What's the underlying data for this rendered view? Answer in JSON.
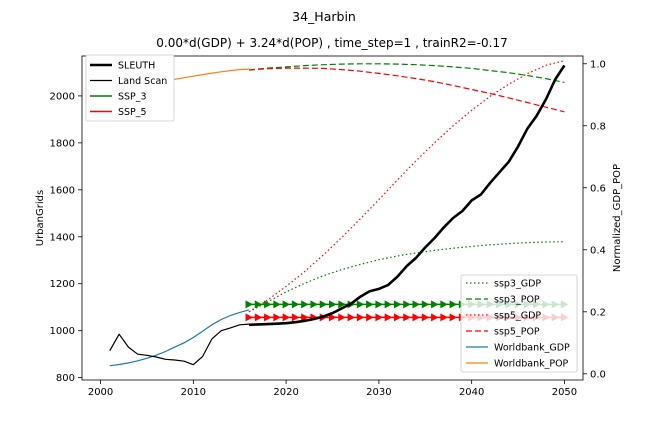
{
  "figure": {
    "suptitle": "34_Harbin",
    "title": "0.00*d(GDP) + 3.24*d(POP) , time_step=1 , trainR2=-0.17"
  },
  "chart_data": {
    "type": "line",
    "title": "0.00*d(GDP) + 3.24*d(POP) , time_step=1 , trainR2=-0.17",
    "xlim": [
      1998,
      2052
    ],
    "xticks": [
      2000,
      2010,
      2020,
      2030,
      2040,
      2050
    ],
    "left_axis": {
      "label": "UrbanGrids",
      "ylim": [
        790,
        2170
      ],
      "ticks": [
        800,
        1000,
        1200,
        1400,
        1600,
        1800,
        2000
      ]
    },
    "right_axis": {
      "label": "Normalized_GDP_POP",
      "ylim": [
        -0.02,
        1.025
      ],
      "ticks": [
        "0.0",
        "0.2",
        "0.4",
        "0.6",
        "0.8",
        "1.0"
      ]
    },
    "legend_left": {
      "placement": "upper-left",
      "entries": [
        "SLEUTH",
        "Land Scan",
        "SSP_3",
        "SSP_5"
      ]
    },
    "legend_right": {
      "placement": "lower-right",
      "entries": [
        "ssp3_GDP",
        "ssp3_POP",
        "ssp5_GDP",
        "ssp5_POP",
        "Worldbank_GDP",
        "Worldbank_POP"
      ]
    },
    "series_left": [
      {
        "name": "SLEUTH",
        "color": "#000000",
        "width": 2.6,
        "style": "solid",
        "x": [
          2016,
          2017,
          2018,
          2019,
          2020,
          2021,
          2022,
          2023,
          2024,
          2025,
          2026,
          2027,
          2028,
          2029,
          2030,
          2031,
          2032,
          2033,
          2034,
          2035,
          2036,
          2037,
          2038,
          2039,
          2040,
          2041,
          2042,
          2043,
          2044,
          2045,
          2046,
          2047,
          2048,
          2049,
          2050
        ],
        "y": [
          1025,
          1027,
          1028,
          1030,
          1032,
          1036,
          1042,
          1050,
          1060,
          1075,
          1095,
          1115,
          1145,
          1168,
          1178,
          1195,
          1230,
          1275,
          1310,
          1355,
          1395,
          1440,
          1480,
          1510,
          1555,
          1580,
          1630,
          1675,
          1720,
          1785,
          1860,
          1915,
          1985,
          2070,
          2130
        ]
      },
      {
        "name": "Land Scan",
        "color": "#000000",
        "width": 1.2,
        "style": "solid",
        "x": [
          2001,
          2002,
          2003,
          2004,
          2005,
          2006,
          2007,
          2008,
          2009,
          2010,
          2011,
          2012,
          2013,
          2014,
          2015,
          2016
        ],
        "y": [
          915,
          985,
          930,
          900,
          895,
          888,
          878,
          875,
          870,
          855,
          890,
          965,
          1000,
          1012,
          1025,
          1028
        ]
      },
      {
        "name": "SSP_3",
        "color": "#008000",
        "width": 1.5,
        "style": "solid",
        "x": [],
        "y": []
      },
      {
        "name": "SSP_5",
        "color": "#ff0000",
        "width": 1.5,
        "style": "solid",
        "x": [],
        "y": []
      }
    ],
    "series_right": [
      {
        "name": "ssp3_GDP",
        "color": "#008000",
        "style": "dotted",
        "x": [
          2016,
          2018,
          2020,
          2022,
          2024,
          2026,
          2028,
          2030,
          2032,
          2034,
          2036,
          2038,
          2040,
          2042,
          2044,
          2046,
          2048,
          2050
        ],
        "y": [
          0.2,
          0.232,
          0.264,
          0.292,
          0.316,
          0.336,
          0.353,
          0.368,
          0.38,
          0.39,
          0.398,
          0.405,
          0.411,
          0.416,
          0.42,
          0.423,
          0.425,
          0.426
        ]
      },
      {
        "name": "ssp3_POP",
        "color": "#008000",
        "style": "dashed",
        "x": [
          2016,
          2018,
          2020,
          2022,
          2024,
          2026,
          2028,
          2030,
          2032,
          2034,
          2036,
          2038,
          2040,
          2042,
          2044,
          2046,
          2048,
          2050
        ],
        "y": [
          0.98,
          0.986,
          0.99,
          0.994,
          0.997,
          0.999,
          1.0,
          1.0,
          0.999,
          0.997,
          0.994,
          0.99,
          0.985,
          0.978,
          0.971,
          0.962,
          0.952,
          0.94
        ]
      },
      {
        "name": "ssp5_GDP",
        "color": "#ff0000",
        "style": "dotted",
        "x": [
          2016,
          2018,
          2020,
          2022,
          2024,
          2026,
          2028,
          2030,
          2032,
          2034,
          2036,
          2038,
          2040,
          2042,
          2044,
          2046,
          2048,
          2050
        ],
        "y": [
          0.2,
          0.238,
          0.282,
          0.33,
          0.383,
          0.44,
          0.5,
          0.562,
          0.625,
          0.687,
          0.745,
          0.8,
          0.85,
          0.895,
          0.934,
          0.968,
          0.995,
          1.01
        ]
      },
      {
        "name": "ssp5_POP",
        "color": "#ff0000",
        "style": "dashed",
        "x": [
          2016,
          2018,
          2020,
          2022,
          2024,
          2026,
          2028,
          2030,
          2032,
          2034,
          2036,
          2038,
          2040,
          2042,
          2044,
          2046,
          2048,
          2050
        ],
        "y": [
          0.98,
          0.984,
          0.986,
          0.986,
          0.985,
          0.981,
          0.976,
          0.969,
          0.961,
          0.952,
          0.942,
          0.93,
          0.917,
          0.904,
          0.89,
          0.875,
          0.86,
          0.845
        ]
      },
      {
        "name": "Worldbank_GDP",
        "color": "#1f77b4",
        "style": "solid",
        "x": [
          2001,
          2002,
          2003,
          2004,
          2005,
          2006,
          2007,
          2008,
          2009,
          2010,
          2011,
          2012,
          2013,
          2014,
          2015,
          2016
        ],
        "y": [
          0.026,
          0.03,
          0.035,
          0.042,
          0.05,
          0.06,
          0.072,
          0.086,
          0.1,
          0.117,
          0.137,
          0.158,
          0.175,
          0.188,
          0.198,
          0.206
        ]
      },
      {
        "name": "Worldbank_POP",
        "color": "#ff7f0e",
        "style": "solid",
        "x": [
          2001,
          2002,
          2003,
          2004,
          2005,
          2006,
          2007,
          2008,
          2009,
          2010,
          2011,
          2012,
          2013,
          2014,
          2015,
          2016
        ],
        "y": [
          0.905,
          0.912,
          0.919,
          0.925,
          0.932,
          0.938,
          0.944,
          0.95,
          0.955,
          0.96,
          0.965,
          0.97,
          0.974,
          0.978,
          0.981,
          0.983
        ]
      }
    ],
    "marker_rows": [
      {
        "name": "SSP_3",
        "color": "#008000",
        "x_start": 2016,
        "x_end": 2050,
        "y_left": 1112
      },
      {
        "name": "SSP_5",
        "color": "#ff0000",
        "x_start": 2016,
        "x_end": 2050,
        "y_left": 1057
      }
    ]
  }
}
